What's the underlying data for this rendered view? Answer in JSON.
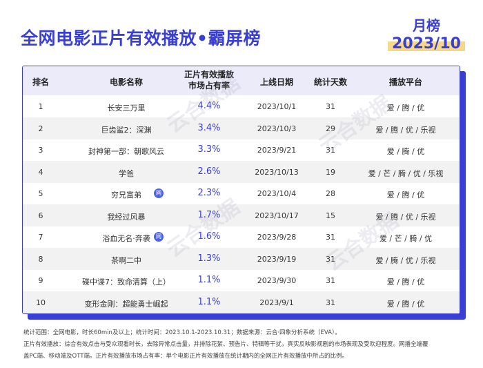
{
  "title": "全网电影正片有效播放•霸屏榜",
  "badge": {
    "line1": "月榜",
    "line2": "2023/10"
  },
  "table": {
    "headers": {
      "rank": "排名",
      "name": "电影名称",
      "share_line1": "正片有效播放",
      "share_line2": "市场占有率",
      "date": "上线日期",
      "days": "统计天数",
      "platform": "播放平台"
    },
    "rows": [
      {
        "rank": "1",
        "name": "长安三万里",
        "share": "4.4%",
        "date": "2023/10/1",
        "days": "31",
        "platform": "爱 / 腾 / 优",
        "net": ""
      },
      {
        "rank": "2",
        "name": "巨齿鲨2：深渊",
        "share": "3.4%",
        "date": "2023/10/3",
        "days": "29",
        "platform": "爱 / 腾 / 优 / 乐视",
        "net": ""
      },
      {
        "rank": "3",
        "name": "封神第一部：朝歌风云",
        "share": "3.3%",
        "date": "2023/9/21",
        "days": "31",
        "platform": "爱 / 腾 / 优",
        "net": ""
      },
      {
        "rank": "4",
        "name": "学爸",
        "share": "2.6%",
        "date": "2023/10/13",
        "days": "19",
        "platform": "爱 / 芒 / 腾 / 优 / 乐视",
        "net": ""
      },
      {
        "rank": "5",
        "name": "穷兄富弟",
        "share": "2.3%",
        "date": "2023/10/4",
        "days": "28",
        "platform": "爱 / 腾 / 优",
        "net": "网"
      },
      {
        "rank": "6",
        "name": "我经过风暴",
        "share": "1.7%",
        "date": "2023/10/17",
        "days": "15",
        "platform": "爱 / 腾 / 优 / 乐视",
        "net": ""
      },
      {
        "rank": "7",
        "name": "浴血无名·奔袭",
        "share": "1.6%",
        "date": "2023/9/28",
        "days": "31",
        "platform": "爱 / 芒 / 腾 / 优",
        "net": "网"
      },
      {
        "rank": "8",
        "name": "茶啊二中",
        "share": "1.3%",
        "date": "2023/9/19",
        "days": "31",
        "platform": "爱 / 腾 / 优 / 乐视",
        "net": ""
      },
      {
        "rank": "9",
        "name": "碟中谍7：致命清算（上）",
        "share": "1.1%",
        "date": "2023/9/30",
        "days": "31",
        "platform": "爱 / 腾 / 优",
        "net": ""
      },
      {
        "rank": "10",
        "name": "变形金刚：超能勇士崛起",
        "share": "1.1%",
        "date": "2023/9/1",
        "days": "31",
        "platform": "爱 / 腾 / 优",
        "net": ""
      }
    ]
  },
  "notes": {
    "line1": "统计范围：全网电影，时长60min及以上；统计时间：2023.10.1-2023.10.31；数据来源：云合·四象分析系统（EVA）。",
    "line2": "正片有效播放：综合有效点击与受众观看时长，去除异常点击量，并排除花絮、预告片、特辑等干扰，真实反映影视剧的市场表现及受欢迎程度。网播全端覆",
    "line3": "盖PC端、移动端及OTT端。正片有效播放市场占有率：单个电影正片有效播放在统计期内的全网正片有效播放中所占的比例。"
  },
  "colors": {
    "accent": "#3a3fd4",
    "highlight": "#f6d88a",
    "header_bg": "#ebebfa",
    "row_alt": "#f2f2f2"
  }
}
